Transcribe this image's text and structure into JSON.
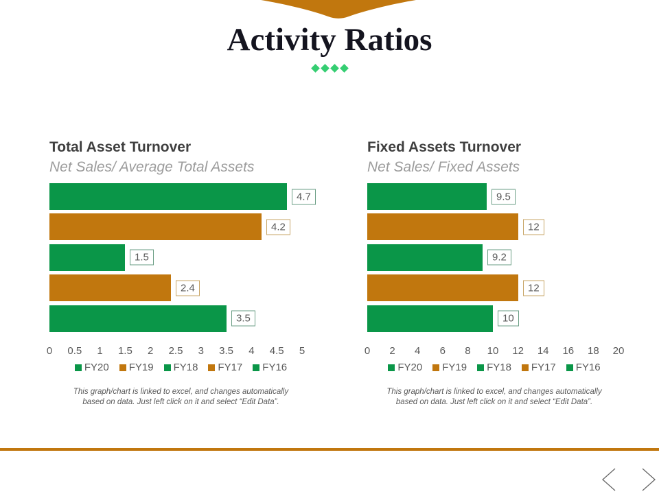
{
  "slide": {
    "title": "Activity Ratios",
    "colors": {
      "orange": "#C1770E",
      "green": "#0A9648",
      "diamond_green": "#35CE72",
      "text_dark": "#14141F",
      "chart_title": "#3F3F3F",
      "chart_subtitle": "#9C9C9C",
      "axis_text": "#595959",
      "label_border_green": "#6A9E84",
      "label_border_orange": "#C7A465",
      "arrow_gray": "#666666"
    }
  },
  "chart_data": [
    {
      "type": "bar",
      "orientation": "horizontal",
      "title": "Total Asset Turnover",
      "subtitle": "Net Sales/ Average Total Assets",
      "categories": [
        "FY20",
        "FY19",
        "FY18",
        "FY17",
        "FY16"
      ],
      "values": [
        4.7,
        4.2,
        1.5,
        2.4,
        3.5
      ],
      "bar_labels": [
        "4.7",
        "4.2",
        "1.5",
        "2.4",
        "3.5"
      ],
      "series_colors": [
        "green",
        "orange",
        "green",
        "orange",
        "green"
      ],
      "xlim": [
        0,
        5
      ],
      "x_tick_labels": [
        "0",
        "0.5",
        "1",
        "1.5",
        "2",
        "2.5",
        "3",
        "3.5",
        "4",
        "4.5",
        "5"
      ],
      "grid": false,
      "legend": [
        "FY20",
        "FY19",
        "FY18",
        "FY17",
        "FY16"
      ],
      "legend_position": "bottom",
      "note": [
        "This graph/chart is linked to excel, and changes automatically",
        "based on data. Just left click on it and select “Edit Data”."
      ]
    },
    {
      "type": "bar",
      "orientation": "horizontal",
      "title": "Fixed Assets Turnover",
      "subtitle": "Net Sales/ Fixed Assets",
      "categories": [
        "FY20",
        "FY19",
        "FY18",
        "FY17",
        "FY16"
      ],
      "values": [
        9.5,
        12,
        9.2,
        12,
        10
      ],
      "bar_labels": [
        "9.5",
        "12",
        "9.2",
        "12",
        "10"
      ],
      "series_colors": [
        "green",
        "orange",
        "green",
        "orange",
        "green"
      ],
      "xlim": [
        0,
        20
      ],
      "x_tick_labels": [
        "0",
        "2",
        "4",
        "6",
        "8",
        "10",
        "12",
        "14",
        "16",
        "18",
        "20"
      ],
      "grid": false,
      "legend": [
        "FY20",
        "FY19",
        "FY18",
        "FY17",
        "FY16"
      ],
      "legend_position": "bottom",
      "note": [
        "This graph/chart is linked to excel, and changes automatically",
        "based on data. Just left click on it and select “Edit Data”."
      ]
    }
  ]
}
